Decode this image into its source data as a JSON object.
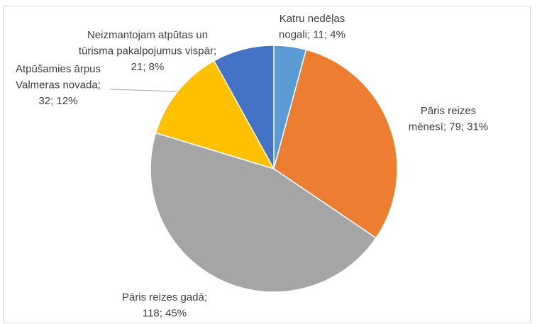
{
  "chart_data": {
    "type": "pie",
    "values": [
      11,
      79,
      118,
      32,
      21
    ],
    "value_labels": [
      [
        "Katru nedēļas",
        "nogali; 11; 4%"
      ],
      [
        "Pāris reizes",
        "mēnesī; 79; 31%"
      ],
      [
        "Pāris reizes gadā;",
        "118; 45%"
      ],
      [
        "Atpūšamies ārpus",
        "Valmeras novada;",
        "32; 12%"
      ],
      [
        "Neizmantojam atpūtas un",
        "tūrisma pakalpojumus vispār;",
        "21; 8%"
      ]
    ],
    "colors": [
      "#5b9bd5",
      "#ed7d31",
      "#a5a5a5",
      "#ffc000",
      "#4472c4"
    ]
  }
}
